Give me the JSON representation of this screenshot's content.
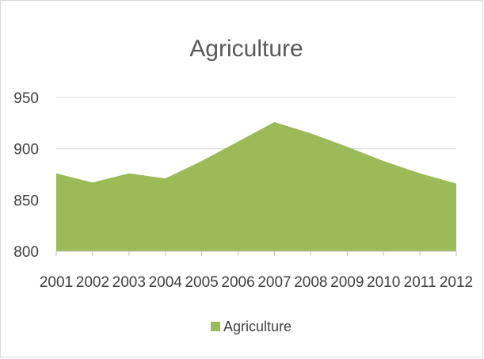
{
  "chart_data": {
    "type": "area",
    "title": "Agriculture",
    "xlabel": "",
    "ylabel": "",
    "categories": [
      "2001",
      "2002",
      "2003",
      "2004",
      "2005",
      "2006",
      "2007",
      "2008",
      "2009",
      "2010",
      "2011",
      "2012"
    ],
    "series": [
      {
        "name": "Agriculture",
        "color": "#9bbb59",
        "values": [
          876,
          867,
          876,
          871,
          888,
          907,
          926,
          915,
          902,
          888,
          876,
          866
        ]
      }
    ],
    "ylim": [
      800,
      950
    ],
    "yticks": [
      "800",
      "850",
      "900",
      "950"
    ],
    "grid": true,
    "legend": "bottom"
  }
}
